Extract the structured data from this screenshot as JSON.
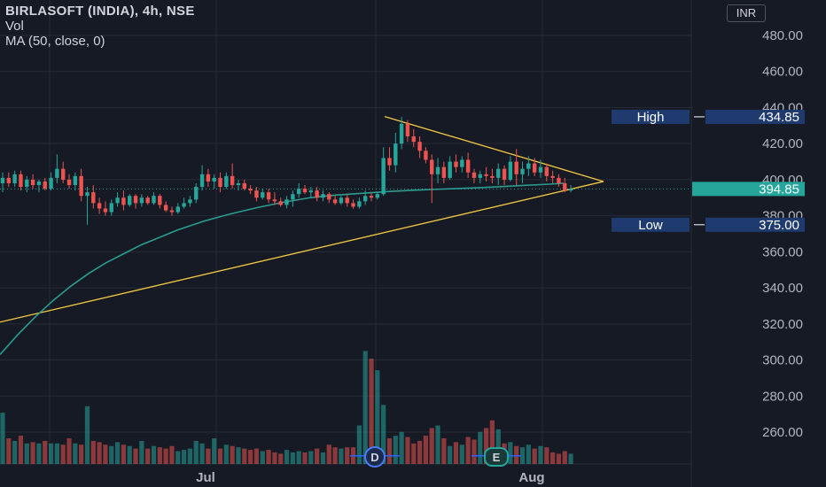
{
  "header": {
    "title": "BIRLASOFT (INDIA), 4h, NSE",
    "indicator_vol": "Vol",
    "indicator_ma": "MA (50, close, 0)",
    "currency": "INR"
  },
  "colors": {
    "background": "#161a25",
    "grid": "#262a35",
    "up": "#26a69a",
    "down": "#ef5350",
    "ma": "#2a9d8f",
    "trendline": "#f3c844",
    "label_blue": "#1e3a6e",
    "label_price": "#26a69a",
    "axis_text": "#b2b5be"
  },
  "chart_data": {
    "type": "candlestick",
    "ylim": [
      250,
      490
    ],
    "y_ticks": [
      "480.00",
      "460.00",
      "440.00",
      "420.00",
      "400.00",
      "380.00",
      "360.00",
      "340.00",
      "320.00",
      "300.00",
      "280.00",
      "260.00"
    ],
    "x_ticks": [
      "Jul",
      "Aug"
    ],
    "high_label": "High",
    "high_value": "434.85",
    "low_label": "Low",
    "low_value": "375.00",
    "last_price": "394.85",
    "events": [
      "D",
      "E"
    ],
    "candles": [
      {
        "o": 398,
        "h": 404,
        "l": 393,
        "c": 401
      },
      {
        "o": 401,
        "h": 404,
        "l": 396,
        "c": 398
      },
      {
        "o": 398,
        "h": 405,
        "l": 396,
        "c": 403
      },
      {
        "o": 403,
        "h": 405,
        "l": 394,
        "c": 396
      },
      {
        "o": 396,
        "h": 402,
        "l": 393,
        "c": 400
      },
      {
        "o": 400,
        "h": 403,
        "l": 395,
        "c": 397
      },
      {
        "o": 397,
        "h": 400,
        "l": 393,
        "c": 399
      },
      {
        "o": 399,
        "h": 401,
        "l": 394,
        "c": 395
      },
      {
        "o": 395,
        "h": 404,
        "l": 394,
        "c": 401
      },
      {
        "o": 401,
        "h": 414,
        "l": 398,
        "c": 406
      },
      {
        "o": 406,
        "h": 410,
        "l": 398,
        "c": 400
      },
      {
        "o": 400,
        "h": 403,
        "l": 395,
        "c": 397
      },
      {
        "o": 397,
        "h": 404,
        "l": 394,
        "c": 402
      },
      {
        "o": 402,
        "h": 406,
        "l": 388,
        "c": 391
      },
      {
        "o": 391,
        "h": 396,
        "l": 375,
        "c": 393
      },
      {
        "o": 393,
        "h": 397,
        "l": 384,
        "c": 387
      },
      {
        "o": 387,
        "h": 390,
        "l": 381,
        "c": 384
      },
      {
        "o": 384,
        "h": 388,
        "l": 380,
        "c": 382
      },
      {
        "o": 382,
        "h": 389,
        "l": 380,
        "c": 387
      },
      {
        "o": 387,
        "h": 393,
        "l": 385,
        "c": 390
      },
      {
        "o": 390,
        "h": 394,
        "l": 383,
        "c": 386
      },
      {
        "o": 386,
        "h": 392,
        "l": 385,
        "c": 391
      },
      {
        "o": 391,
        "h": 392,
        "l": 384,
        "c": 387
      },
      {
        "o": 387,
        "h": 392,
        "l": 385,
        "c": 390
      },
      {
        "o": 390,
        "h": 391,
        "l": 386,
        "c": 387
      },
      {
        "o": 387,
        "h": 393,
        "l": 386,
        "c": 391
      },
      {
        "o": 391,
        "h": 392,
        "l": 384,
        "c": 386
      },
      {
        "o": 386,
        "h": 388,
        "l": 382,
        "c": 383
      },
      {
        "o": 383,
        "h": 385,
        "l": 380,
        "c": 382
      },
      {
        "o": 382,
        "h": 387,
        "l": 381,
        "c": 385
      },
      {
        "o": 385,
        "h": 390,
        "l": 384,
        "c": 387
      },
      {
        "o": 387,
        "h": 391,
        "l": 385,
        "c": 389
      },
      {
        "o": 389,
        "h": 398,
        "l": 387,
        "c": 396
      },
      {
        "o": 396,
        "h": 408,
        "l": 394,
        "c": 403
      },
      {
        "o": 403,
        "h": 406,
        "l": 396,
        "c": 399
      },
      {
        "o": 399,
        "h": 403,
        "l": 395,
        "c": 401
      },
      {
        "o": 401,
        "h": 404,
        "l": 393,
        "c": 396
      },
      {
        "o": 396,
        "h": 404,
        "l": 395,
        "c": 402
      },
      {
        "o": 402,
        "h": 409,
        "l": 395,
        "c": 397
      },
      {
        "o": 397,
        "h": 400,
        "l": 394,
        "c": 398
      },
      {
        "o": 398,
        "h": 400,
        "l": 394,
        "c": 395
      },
      {
        "o": 395,
        "h": 397,
        "l": 392,
        "c": 394
      },
      {
        "o": 394,
        "h": 396,
        "l": 388,
        "c": 390
      },
      {
        "o": 390,
        "h": 395,
        "l": 389,
        "c": 393
      },
      {
        "o": 393,
        "h": 395,
        "l": 387,
        "c": 389
      },
      {
        "o": 389,
        "h": 393,
        "l": 386,
        "c": 388
      },
      {
        "o": 388,
        "h": 390,
        "l": 385,
        "c": 386
      },
      {
        "o": 386,
        "h": 391,
        "l": 384,
        "c": 389
      },
      {
        "o": 389,
        "h": 394,
        "l": 385,
        "c": 392
      },
      {
        "o": 392,
        "h": 398,
        "l": 390,
        "c": 395
      },
      {
        "o": 395,
        "h": 397,
        "l": 392,
        "c": 393
      },
      {
        "o": 393,
        "h": 396,
        "l": 390,
        "c": 394
      },
      {
        "o": 394,
        "h": 396,
        "l": 388,
        "c": 390
      },
      {
        "o": 390,
        "h": 394,
        "l": 388,
        "c": 392
      },
      {
        "o": 392,
        "h": 393,
        "l": 387,
        "c": 389
      },
      {
        "o": 389,
        "h": 391,
        "l": 386,
        "c": 387
      },
      {
        "o": 387,
        "h": 391,
        "l": 386,
        "c": 390
      },
      {
        "o": 390,
        "h": 392,
        "l": 385,
        "c": 387
      },
      {
        "o": 387,
        "h": 389,
        "l": 384,
        "c": 385
      },
      {
        "o": 385,
        "h": 390,
        "l": 384,
        "c": 388
      },
      {
        "o": 388,
        "h": 394,
        "l": 386,
        "c": 391
      },
      {
        "o": 391,
        "h": 393,
        "l": 388,
        "c": 390
      },
      {
        "o": 390,
        "h": 393,
        "l": 389,
        "c": 392
      },
      {
        "o": 392,
        "h": 418,
        "l": 391,
        "c": 412
      },
      {
        "o": 412,
        "h": 418,
        "l": 405,
        "c": 408
      },
      {
        "o": 408,
        "h": 426,
        "l": 404,
        "c": 420
      },
      {
        "o": 420,
        "h": 434.85,
        "l": 417,
        "c": 431
      },
      {
        "o": 431,
        "h": 433,
        "l": 421,
        "c": 424
      },
      {
        "o": 424,
        "h": 428,
        "l": 418,
        "c": 421
      },
      {
        "o": 421,
        "h": 424,
        "l": 412,
        "c": 416
      },
      {
        "o": 416,
        "h": 418,
        "l": 409,
        "c": 411
      },
      {
        "o": 411,
        "h": 414,
        "l": 387,
        "c": 403
      },
      {
        "o": 403,
        "h": 412,
        "l": 398,
        "c": 407
      },
      {
        "o": 407,
        "h": 410,
        "l": 398,
        "c": 401
      },
      {
        "o": 401,
        "h": 413,
        "l": 400,
        "c": 410
      },
      {
        "o": 410,
        "h": 414,
        "l": 404,
        "c": 407
      },
      {
        "o": 407,
        "h": 413,
        "l": 404,
        "c": 411
      },
      {
        "o": 411,
        "h": 415,
        "l": 401,
        "c": 404
      },
      {
        "o": 404,
        "h": 406,
        "l": 398,
        "c": 401
      },
      {
        "o": 401,
        "h": 405,
        "l": 398,
        "c": 403
      },
      {
        "o": 403,
        "h": 407,
        "l": 399,
        "c": 402
      },
      {
        "o": 402,
        "h": 406,
        "l": 398,
        "c": 401
      },
      {
        "o": 401,
        "h": 409,
        "l": 397,
        "c": 406
      },
      {
        "o": 406,
        "h": 408,
        "l": 397,
        "c": 400
      },
      {
        "o": 400,
        "h": 413,
        "l": 399,
        "c": 410
      },
      {
        "o": 410,
        "h": 417,
        "l": 397,
        "c": 403
      },
      {
        "o": 403,
        "h": 410,
        "l": 398,
        "c": 406
      },
      {
        "o": 406,
        "h": 413,
        "l": 402,
        "c": 409
      },
      {
        "o": 409,
        "h": 412,
        "l": 402,
        "c": 404
      },
      {
        "o": 404,
        "h": 411,
        "l": 401,
        "c": 407
      },
      {
        "o": 407,
        "h": 409,
        "l": 399,
        "c": 402
      },
      {
        "o": 402,
        "h": 405,
        "l": 398,
        "c": 401
      },
      {
        "o": 401,
        "h": 403,
        "l": 396,
        "c": 398
      },
      {
        "o": 398,
        "h": 401,
        "l": 393,
        "c": 394
      },
      {
        "o": 394,
        "h": 397,
        "l": 393,
        "c": 394.85
      }
    ],
    "ma": [
      [
        0,
        303
      ],
      [
        20,
        314
      ],
      [
        40,
        324
      ],
      [
        60,
        333
      ],
      [
        80,
        341
      ],
      [
        100,
        348
      ],
      [
        120,
        354
      ],
      [
        140,
        359
      ],
      [
        160,
        364
      ],
      [
        180,
        368
      ],
      [
        200,
        372
      ],
      [
        230,
        377
      ],
      [
        260,
        381
      ],
      [
        290,
        384.5
      ],
      [
        320,
        387.5
      ],
      [
        350,
        390
      ],
      [
        380,
        391.5
      ],
      [
        410,
        392.5
      ],
      [
        440,
        393.5
      ],
      [
        470,
        394.2
      ],
      [
        500,
        394.8
      ],
      [
        530,
        395.3
      ],
      [
        560,
        396
      ],
      [
        590,
        396.8
      ],
      [
        620,
        397.5
      ],
      [
        636,
        398
      ]
    ],
    "volume": [
      40,
      20,
      18,
      22,
      16,
      17,
      16,
      18,
      16,
      16,
      15,
      20,
      16,
      15,
      45,
      18,
      17,
      15,
      14,
      17,
      15,
      14,
      12,
      18,
      12,
      14,
      13,
      12,
      14,
      10,
      11,
      12,
      18,
      16,
      12,
      20,
      12,
      15,
      14,
      13,
      12,
      11,
      12,
      10,
      11,
      9,
      8,
      11,
      9,
      10,
      9,
      10,
      12,
      9,
      15,
      13,
      12,
      13,
      13,
      30,
      88,
      82,
      73,
      46,
      20,
      22,
      25,
      21,
      16,
      18,
      22,
      28,
      30,
      20,
      14,
      17,
      15,
      21,
      19,
      25,
      28,
      34,
      27,
      16,
      17,
      14,
      13,
      15,
      12,
      14,
      13,
      9,
      8,
      10,
      8
    ],
    "trendlines": [
      {
        "from": [
          0,
          321
        ],
        "to": [
          681,
          399
        ]
      },
      {
        "from": [
          434,
          435
        ],
        "to": [
          681,
          399
        ]
      }
    ]
  }
}
